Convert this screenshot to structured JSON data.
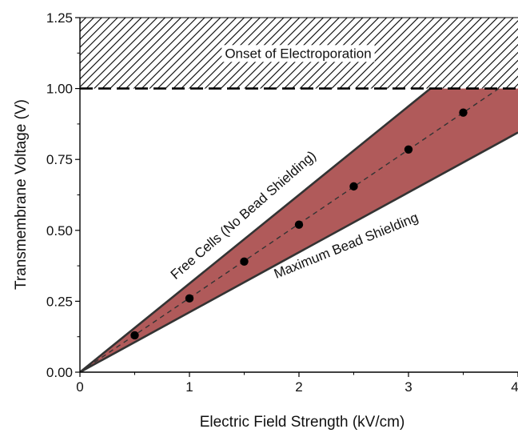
{
  "chart_data": {
    "type": "line",
    "title": "",
    "xlabel": "Electric Field Strength (kV/cm)",
    "ylabel": "Transmembrane Voltage (V)",
    "xlim": [
      0,
      4
    ],
    "ylim": [
      0,
      1.25
    ],
    "x_ticks": [
      "0",
      "1",
      "2",
      "3",
      "4"
    ],
    "y_ticks": [
      "0.00",
      "0.25",
      "0.50",
      "0.75",
      "1.00",
      "1.25"
    ],
    "grid": false,
    "series": [
      {
        "x": [
          0.5,
          1.0,
          1.5,
          2.0,
          2.5,
          3.0,
          3.5
        ],
        "values": [
          0.13,
          0.26,
          0.39,
          0.52,
          0.655,
          0.785,
          0.915
        ]
      }
    ],
    "band": {
      "upper_line": {
        "x": [
          0,
          3.2
        ],
        "values": [
          0,
          1.0
        ]
      },
      "lower_line": {
        "x": [
          0,
          4.0
        ],
        "values": [
          0,
          0.845
        ]
      },
      "fill_color": "#b05a5a",
      "line_color": "#333333"
    },
    "threshold": {
      "y": 1.0,
      "style": "dashed"
    },
    "hatched_region": {
      "y_from": 1.0,
      "y_to": 1.25
    },
    "annotations": [
      "Onset of Electroporation",
      "Free Cells (No Bead Shielding)",
      "Maximum Bead Shielding"
    ],
    "colors": {
      "fill": "#b05a5a",
      "marker": "#000000",
      "axis": "#000000"
    }
  }
}
